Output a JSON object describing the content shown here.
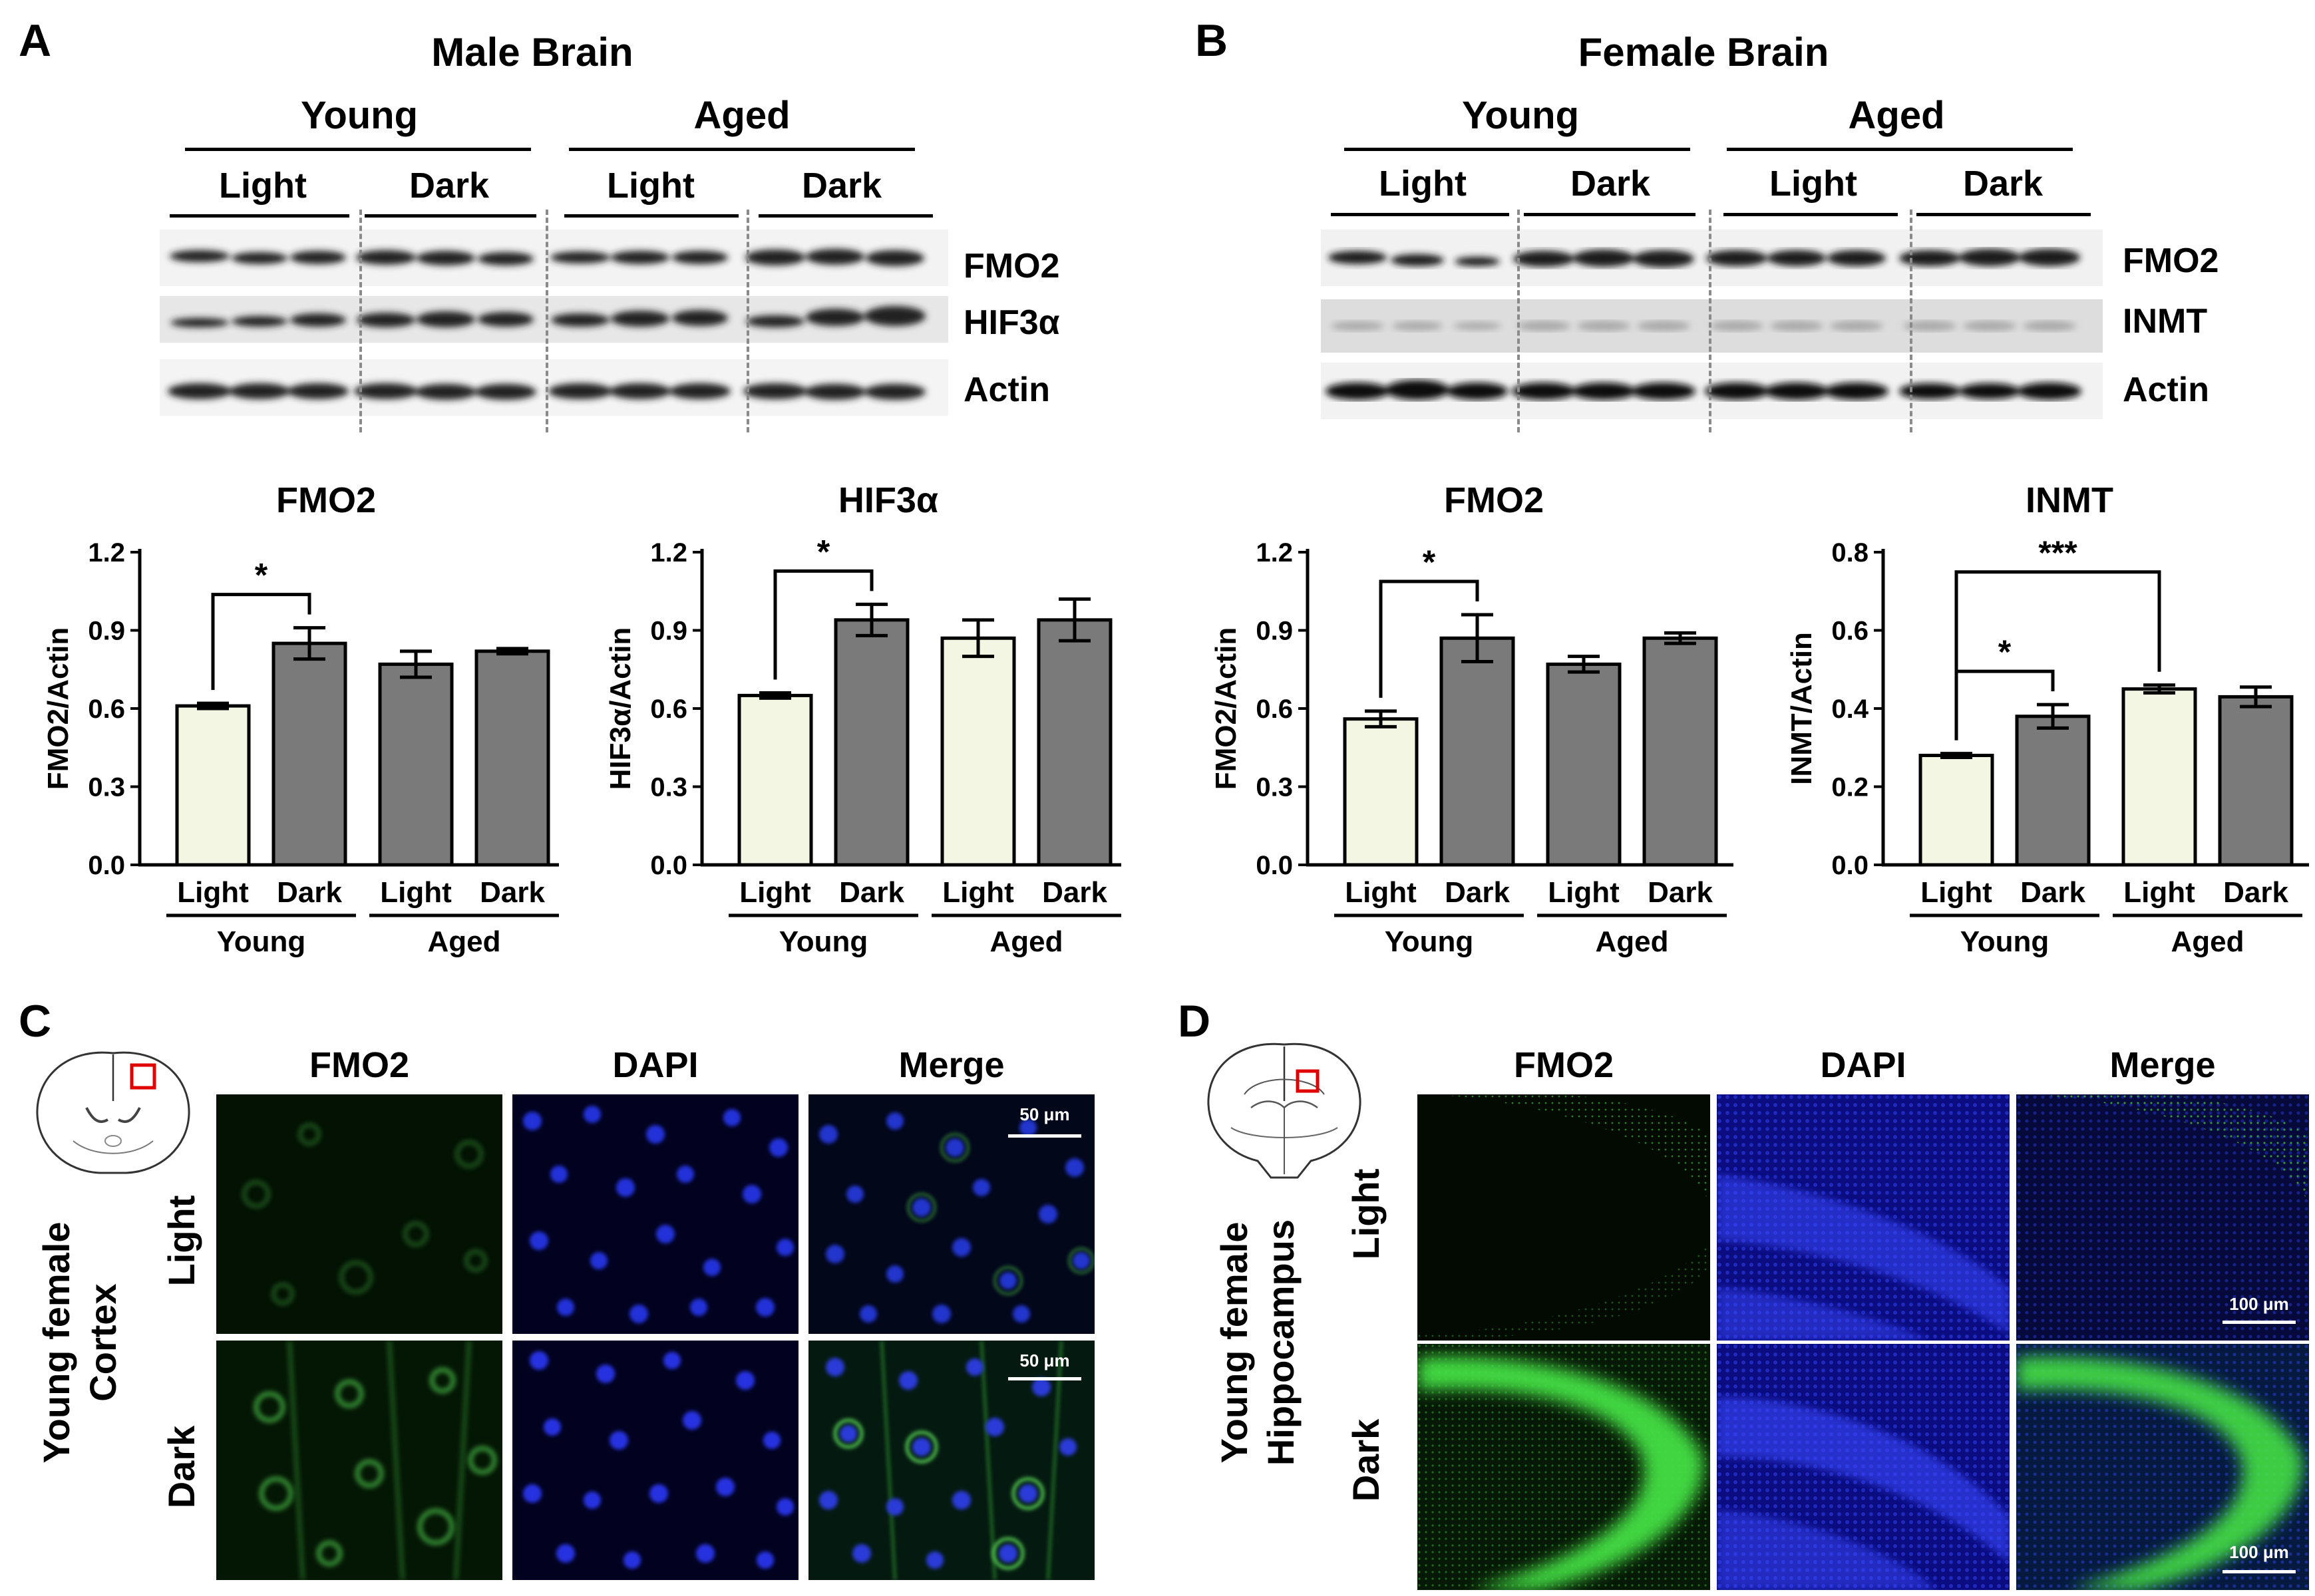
{
  "panels": {
    "A": {
      "label": "A",
      "title": "Male Brain",
      "group_young": "Young",
      "group_aged": "Aged",
      "sub_labels": [
        "Light",
        "Dark",
        "Light",
        "Dark"
      ],
      "bands": [
        "FMO2",
        "HIF3α",
        "Actin"
      ]
    },
    "B": {
      "label": "B",
      "title": "Female Brain",
      "group_young": "Young",
      "group_aged": "Aged",
      "sub_labels": [
        "Light",
        "Dark",
        "Light",
        "Dark"
      ],
      "bands": [
        "FMO2",
        "INMT",
        "Actin"
      ]
    },
    "C": {
      "label": "C",
      "columns": [
        "FMO2",
        "DAPI",
        "Merge"
      ],
      "rows": [
        "Light",
        "Dark"
      ],
      "side_line1": "Young female",
      "side_line2": "Cortex",
      "scalebar": "50 μm"
    },
    "D": {
      "label": "D",
      "columns": [
        "FMO2",
        "DAPI",
        "Merge"
      ],
      "rows": [
        "Light",
        "Dark"
      ],
      "side_line1": "Young female",
      "side_line2": "Hippocampus",
      "scalebar": "100 μm"
    }
  },
  "chart_data": [
    {
      "type": "bar",
      "title": "FMO2",
      "ylabel": "FMO2/Actin",
      "ylim": [
        0,
        1.2
      ],
      "yticks": [
        "0.0",
        "0.3",
        "0.6",
        "0.9",
        "1.2"
      ],
      "categories": [
        "Light",
        "Dark",
        "Light",
        "Dark"
      ],
      "groups": [
        "Young",
        "Aged"
      ],
      "values": [
        0.61,
        0.85,
        0.77,
        0.82
      ],
      "errors": [
        0.01,
        0.06,
        0.05,
        0.01
      ],
      "bar_colors": [
        "#f3f6e2",
        "#7a7a7a",
        "#7a7a7a",
        "#7a7a7a"
      ],
      "significance": [
        {
          "from": 0,
          "to": 1,
          "label": "*"
        }
      ]
    },
    {
      "type": "bar",
      "title": "HIF3α",
      "ylabel": "HIF3α/Actin",
      "ylim": [
        0,
        1.2
      ],
      "yticks": [
        "0.0",
        "0.3",
        "0.6",
        "0.9",
        "1.2"
      ],
      "categories": [
        "Light",
        "Dark",
        "Light",
        "Dark"
      ],
      "groups": [
        "Young",
        "Aged"
      ],
      "values": [
        0.65,
        0.94,
        0.87,
        0.94
      ],
      "errors": [
        0.01,
        0.06,
        0.07,
        0.08
      ],
      "bar_colors": [
        "#f3f6e2",
        "#7a7a7a",
        "#f3f6e2",
        "#7a7a7a"
      ],
      "significance": [
        {
          "from": 0,
          "to": 1,
          "label": "*"
        }
      ]
    },
    {
      "type": "bar",
      "title": "FMO2",
      "ylabel": "FMO2/Actin",
      "ylim": [
        0,
        1.2
      ],
      "yticks": [
        "0.0",
        "0.3",
        "0.6",
        "0.9",
        "1.2"
      ],
      "categories": [
        "Light",
        "Dark",
        "Light",
        "Dark"
      ],
      "groups": [
        "Young",
        "Aged"
      ],
      "values": [
        0.56,
        0.87,
        0.77,
        0.87
      ],
      "errors": [
        0.03,
        0.09,
        0.03,
        0.02
      ],
      "bar_colors": [
        "#f3f6e2",
        "#7a7a7a",
        "#7a7a7a",
        "#7a7a7a"
      ],
      "significance": [
        {
          "from": 0,
          "to": 1,
          "label": "*"
        }
      ]
    },
    {
      "type": "bar",
      "title": "INMT",
      "ylabel": "INMT/Actin",
      "ylim": [
        0,
        0.8
      ],
      "yticks": [
        "0.0",
        "0.2",
        "0.4",
        "0.6",
        "0.8"
      ],
      "categories": [
        "Light",
        "Dark",
        "Light",
        "Dark"
      ],
      "groups": [
        "Young",
        "Aged"
      ],
      "values": [
        0.28,
        0.38,
        0.45,
        0.43
      ],
      "errors": [
        0.005,
        0.03,
        0.01,
        0.025
      ],
      "bar_colors": [
        "#f3f6e2",
        "#7a7a7a",
        "#f3f6e2",
        "#7a7a7a"
      ],
      "significance": [
        {
          "from": 0,
          "to": 1,
          "label": "*"
        },
        {
          "from": 0,
          "to": 2,
          "label": "***"
        }
      ]
    }
  ]
}
